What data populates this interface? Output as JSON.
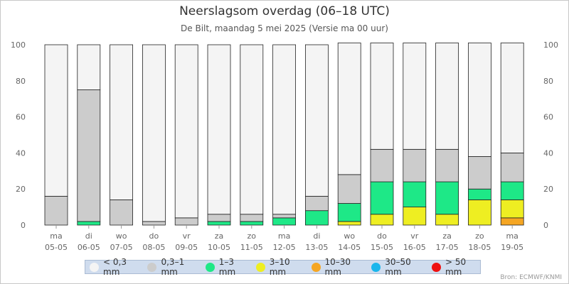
{
  "header": {
    "title": "Neerslagsom overdag (06–18 UTC)",
    "subtitle": "De Bilt, maandag 5 mei 2025 (Versie ma 00 uur)"
  },
  "source": "Bron: ECMWF/KNMI",
  "chart_data": {
    "type": "bar",
    "stacked": true,
    "title": "Neerslagsom overdag (06–18 UTC)",
    "subtitle": "De Bilt, maandag 5 mei 2025 (Versie ma 00 uur)",
    "ylim": [
      0,
      100
    ],
    "yticks": [
      0,
      20,
      40,
      60,
      80,
      100
    ],
    "y_axis_both_sides": true,
    "grid": false,
    "legend_position": "bottom",
    "categories": [
      {
        "day": "ma",
        "date": "05-05"
      },
      {
        "day": "di",
        "date": "06-05"
      },
      {
        "day": "wo",
        "date": "07-05"
      },
      {
        "day": "do",
        "date": "08-05"
      },
      {
        "day": "vr",
        "date": "09-05"
      },
      {
        "day": "za",
        "date": "10-05"
      },
      {
        "day": "zo",
        "date": "11-05"
      },
      {
        "day": "ma",
        "date": "12-05"
      },
      {
        "day": "di",
        "date": "13-05"
      },
      {
        "day": "wo",
        "date": "14-05"
      },
      {
        "day": "do",
        "date": "15-05"
      },
      {
        "day": "vr",
        "date": "16-05"
      },
      {
        "day": "za",
        "date": "17-05"
      },
      {
        "day": "zo",
        "date": "18-05"
      },
      {
        "day": "ma",
        "date": "19-05"
      }
    ],
    "series": [
      {
        "name": "< 0,3 mm",
        "color": "#f4f4f4",
        "values": [
          84,
          25,
          86,
          98,
          96,
          94,
          94,
          94,
          84,
          73,
          59,
          59,
          59,
          63,
          61
        ]
      },
      {
        "name": "0,3–1 mm",
        "color": "#cccccc",
        "values": [
          16,
          73,
          14,
          2,
          4,
          4,
          4,
          2,
          8,
          16,
          18,
          18,
          18,
          18,
          16
        ]
      },
      {
        "name": "1–3 mm",
        "color": "#1ee887",
        "values": [
          0,
          2,
          0,
          0,
          0,
          2,
          2,
          4,
          8,
          10,
          18,
          14,
          18,
          6,
          10
        ]
      },
      {
        "name": "3–10 mm",
        "color": "#eeee22",
        "values": [
          0,
          0,
          0,
          0,
          0,
          0,
          0,
          0,
          0,
          2,
          6,
          10,
          6,
          14,
          10
        ]
      },
      {
        "name": "10–30 mm",
        "color": "#f5a623",
        "values": [
          0,
          0,
          0,
          0,
          0,
          0,
          0,
          0,
          0,
          0,
          0,
          0,
          0,
          0,
          4
        ]
      },
      {
        "name": "30–50 mm",
        "color": "#1ab6ec",
        "values": [
          0,
          0,
          0,
          0,
          0,
          0,
          0,
          0,
          0,
          0,
          0,
          0,
          0,
          0,
          0
        ]
      },
      {
        "name": "> 50 mm",
        "color": "#ee1111",
        "values": [
          0,
          0,
          0,
          0,
          0,
          0,
          0,
          0,
          0,
          0,
          0,
          0,
          0,
          0,
          0
        ]
      }
    ]
  }
}
